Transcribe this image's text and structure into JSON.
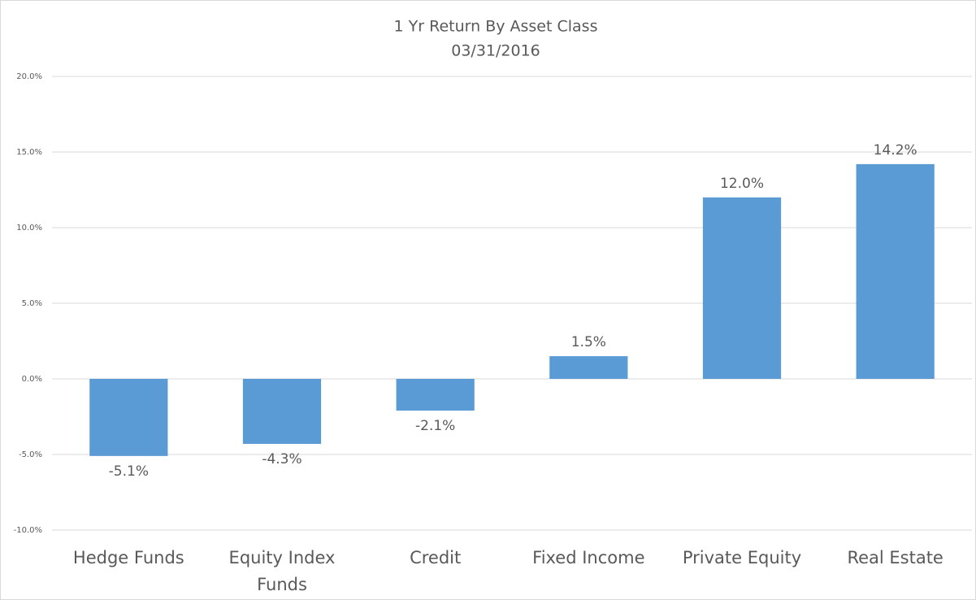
{
  "chart_data": {
    "type": "bar",
    "title": "1 Yr Return By Asset Class",
    "subtitle": "03/31/2016",
    "categories": [
      "Hedge Funds",
      "Equity Index Funds",
      "Credit",
      "Fixed Income",
      "Private Equity",
      "Real Estate"
    ],
    "values": [
      -5.1,
      -4.3,
      -2.1,
      1.5,
      12.0,
      14.2
    ],
    "value_labels": [
      "-5.1%",
      "-4.3%",
      "-2.1%",
      "1.5%",
      "12.0%",
      "14.2%"
    ],
    "color": "#5b9bd5",
    "ylim": [
      -10,
      20
    ],
    "yticks": [
      {
        "value": -10,
        "label": "-10.0%"
      },
      {
        "value": -5,
        "label": "-5.0%"
      },
      {
        "value": 0,
        "label": "0.0%"
      },
      {
        "value": 5,
        "label": "5.0%"
      },
      {
        "value": 10,
        "label": "10.0%"
      },
      {
        "value": 15,
        "label": "15.0%"
      },
      {
        "value": 20,
        "label": "20.0%"
      }
    ],
    "grid": true
  }
}
